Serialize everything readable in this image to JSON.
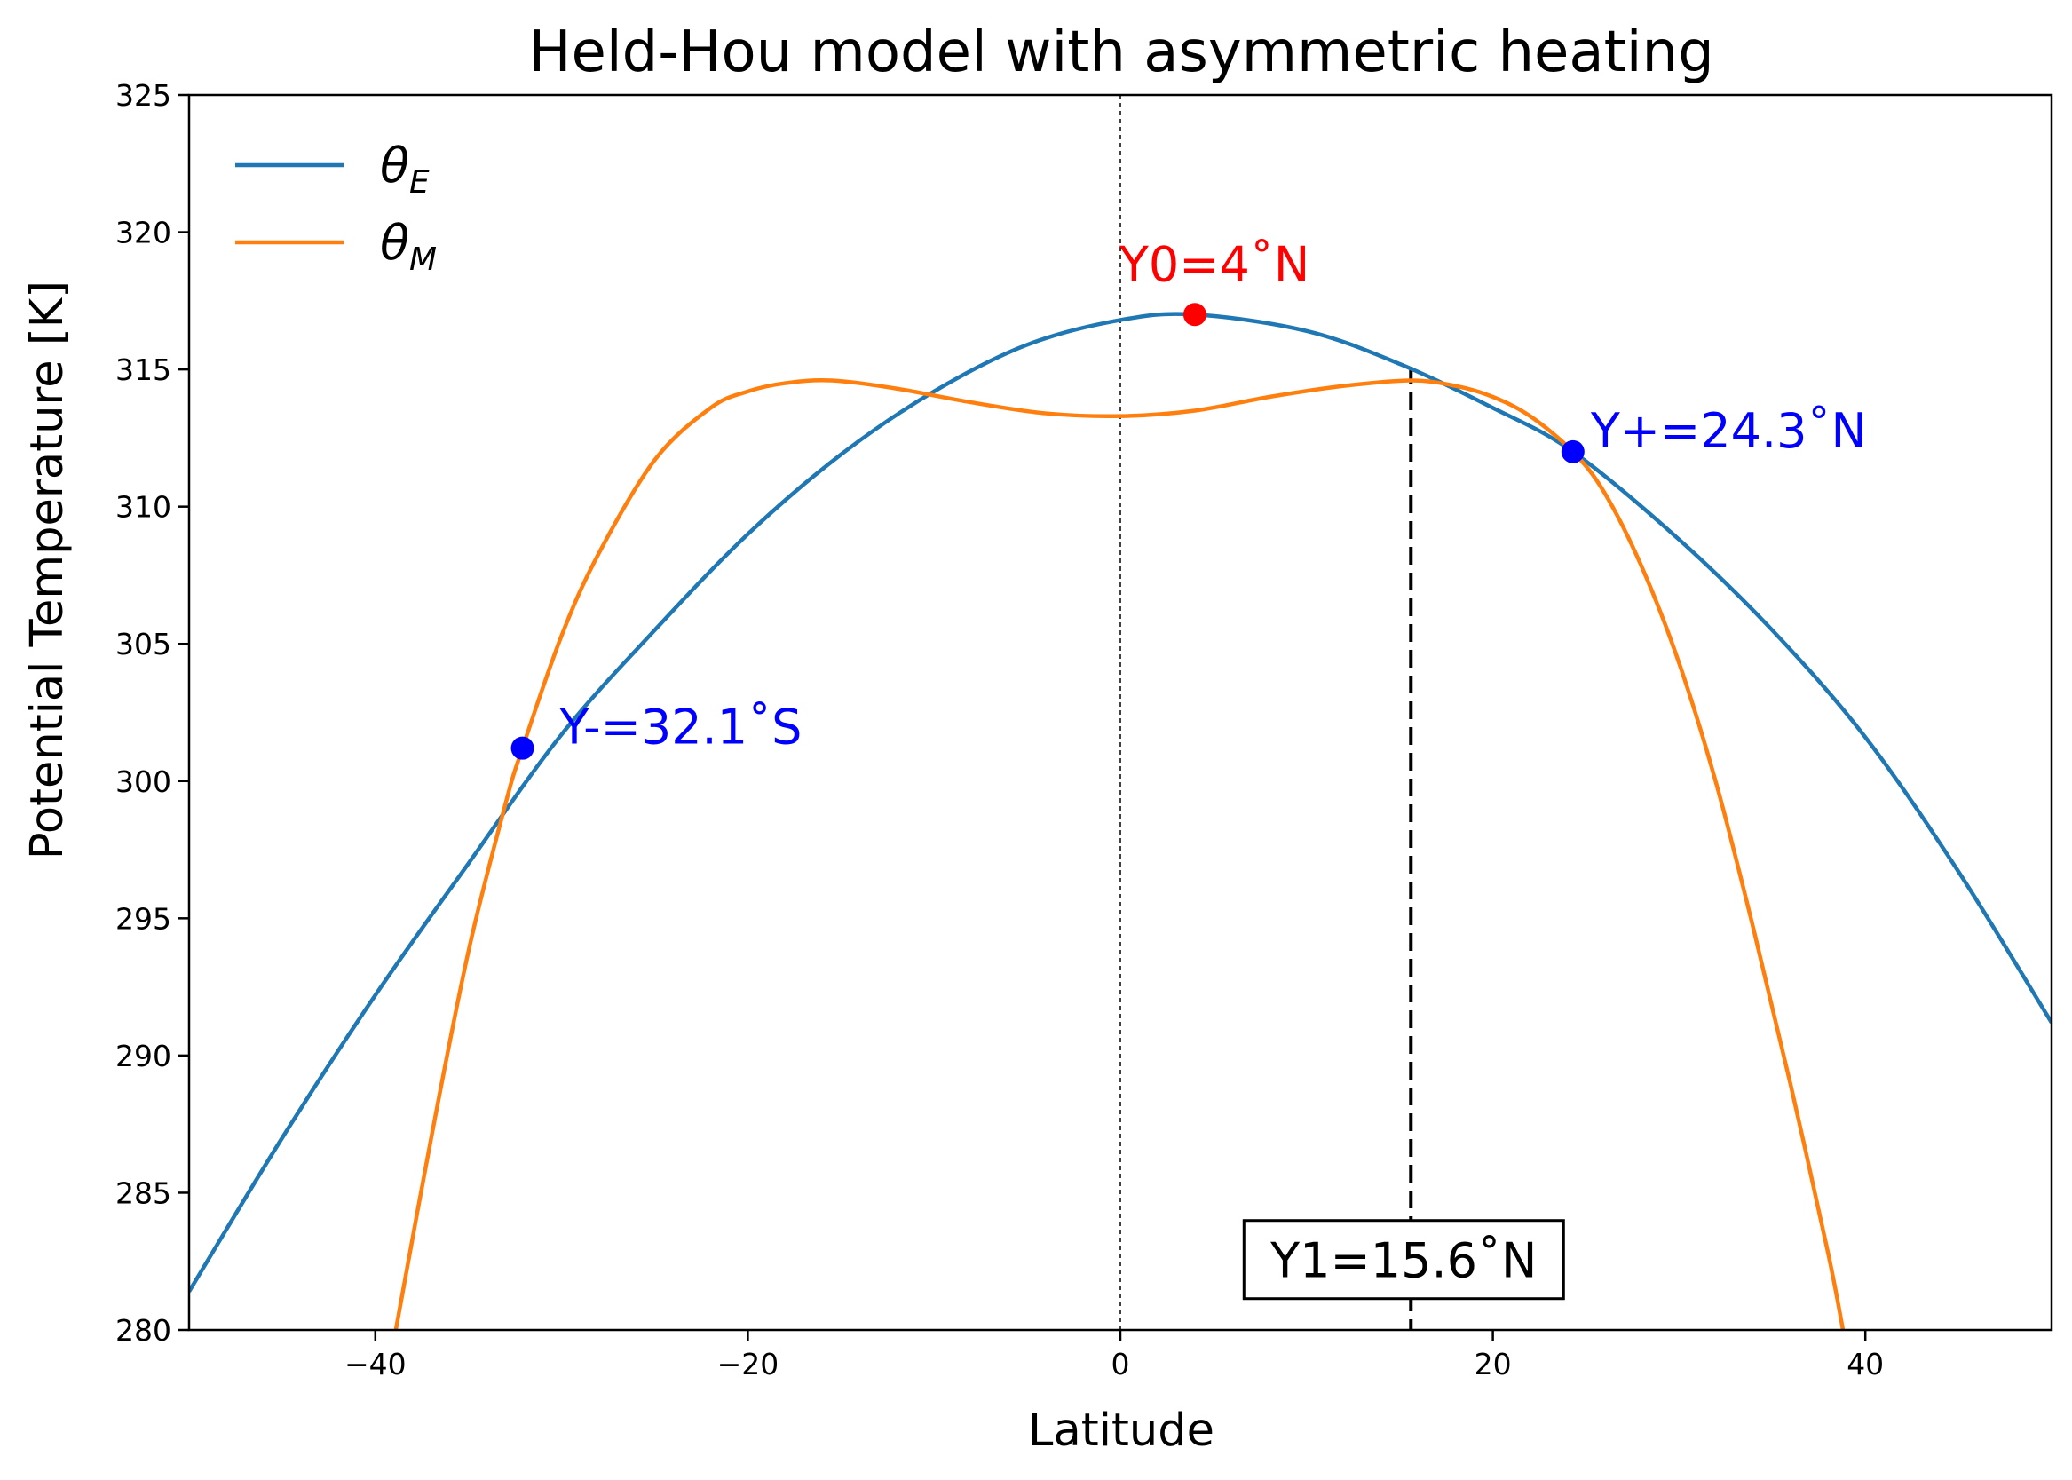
{
  "chart_data": {
    "type": "line",
    "title": "Held-Hou model with asymmetric heating",
    "xlabel": "Latitude",
    "ylabel": "Potential Temperature [K]",
    "xlim": [
      -50,
      50
    ],
    "ylim": [
      280,
      325
    ],
    "xticks": [
      -40,
      -20,
      0,
      20,
      40
    ],
    "xtick_labels": [
      "−40",
      "−20",
      "0",
      "20",
      "40"
    ],
    "yticks": [
      280,
      285,
      290,
      295,
      300,
      305,
      310,
      315,
      320,
      325
    ],
    "ytick_labels": [
      "280",
      "285",
      "290",
      "295",
      "300",
      "305",
      "310",
      "315",
      "320",
      "325"
    ],
    "grid": false,
    "legend_position": "top-left",
    "series": [
      {
        "name": "θE",
        "name_base": "θ",
        "name_sub": "E",
        "color": "#1f77b4",
        "x": [
          -50,
          -45,
          -40,
          -35,
          -30,
          -25,
          -20,
          -15,
          -10,
          -5,
          0,
          4,
          10,
          15,
          20,
          24.3,
          30,
          35,
          40,
          45,
          50
        ],
        "y": [
          281.4,
          287.0,
          292.2,
          297.0,
          301.7,
          305.5,
          309.0,
          311.9,
          314.2,
          315.9,
          316.8,
          317.0,
          316.4,
          315.2,
          313.6,
          312.0,
          308.8,
          305.5,
          301.6,
          296.7,
          291.2
        ]
      },
      {
        "name": "θM",
        "name_base": "θ",
        "name_sub": "M",
        "color": "#ff7f0e",
        "x": [
          -38.9,
          -37,
          -35,
          -33,
          -32.1,
          -30,
          -28,
          -25,
          -22,
          -20,
          -18,
          -15.5,
          -12,
          -8,
          -4,
          0,
          4,
          8,
          12,
          15.6,
          18,
          20,
          22,
          24.3,
          26,
          28,
          30,
          32,
          34,
          36,
          38,
          38.8
        ],
        "y": [
          280.0,
          287.0,
          293.8,
          299.2,
          301.2,
          305.3,
          308.3,
          311.7,
          313.6,
          314.2,
          314.5,
          314.6,
          314.3,
          313.8,
          313.4,
          313.3,
          313.5,
          314.0,
          314.4,
          314.6,
          314.4,
          314.0,
          313.3,
          312.0,
          310.5,
          307.8,
          304.3,
          299.9,
          294.6,
          288.9,
          282.8,
          280.0
        ]
      }
    ],
    "points": [
      {
        "label": "Y0=4˚N",
        "x": 4,
        "y": 317.0,
        "color": "#ff0000"
      },
      {
        "label": "Y+=24.3˚N",
        "x": 24.3,
        "y": 312.0,
        "color": "#0000ff"
      },
      {
        "label": "Y-=32.1˚S",
        "x": -32.1,
        "y": 301.2,
        "color": "#0000ff"
      }
    ],
    "vlines": [
      {
        "x": 0,
        "style": "dotted-thin",
        "color": "#000000"
      },
      {
        "x": 15.6,
        "style": "dashed",
        "color": "#000000",
        "ymax": 315.1
      }
    ],
    "boxed_annotation": {
      "label": "Y1=15.6˚N",
      "x": 15.6,
      "y": 282.5
    }
  }
}
